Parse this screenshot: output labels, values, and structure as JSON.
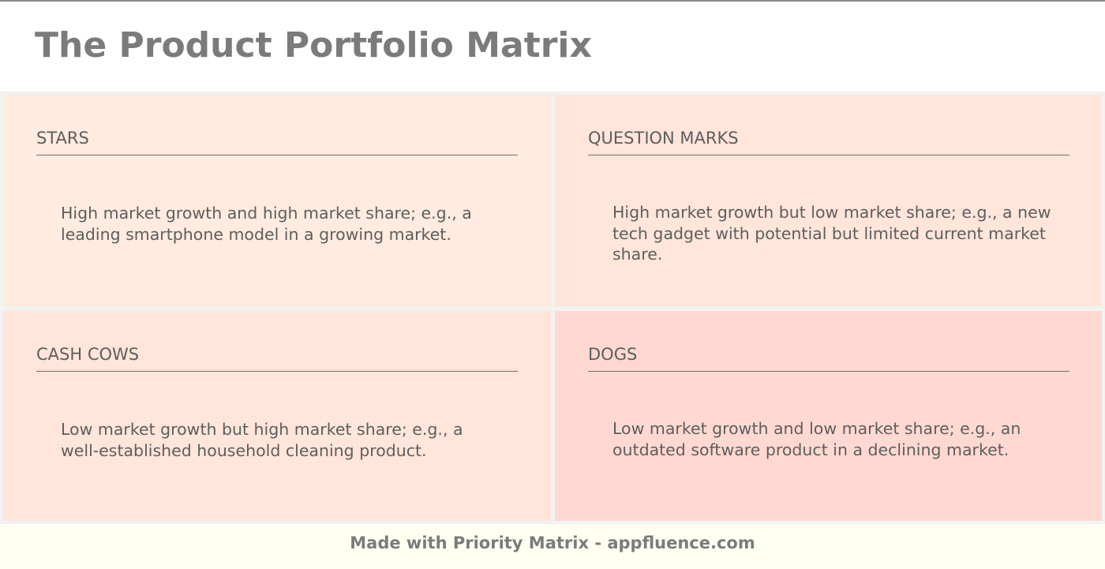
{
  "title": "The Product Portfolio Matrix",
  "quadrants": [
    {
      "id": "stars",
      "title": "STARS",
      "body": "High market growth and high market share; e.g., a leading smartphone model in a growing market.",
      "color": "#ffebdf"
    },
    {
      "id": "question-marks",
      "title": "QUESTION MARKS",
      "body": "High market growth but low market share; e.g., a new tech gadget with potential but limited current market share.",
      "color": "#ffe5da"
    },
    {
      "id": "cash-cows",
      "title": "CASH COWS",
      "body": "Low market growth but high market share; e.g., a well-established household cleaning product.",
      "color": "#ffe5da"
    },
    {
      "id": "dogs",
      "title": "DOGS",
      "body": "Low market growth and low market share; e.g., an outdated software product in a declining market.",
      "color": "#ffd9d1"
    }
  ],
  "footer": {
    "text": "Made with Priority Matrix - appfluence.com"
  }
}
